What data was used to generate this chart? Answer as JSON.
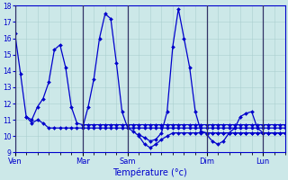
{
  "title": "",
  "xlabel": "Température (°c)",
  "ylabel": "",
  "xlim": [
    0,
    48
  ],
  "ylim": [
    9,
    18
  ],
  "yticks": [
    9,
    10,
    11,
    12,
    13,
    14,
    15,
    16,
    17,
    18
  ],
  "day_positions": [
    0,
    12,
    20,
    34,
    44
  ],
  "day_labels": [
    "Ven",
    "Mar",
    "Sam",
    "Dim",
    "Lun"
  ],
  "background_color": "#cce8e8",
  "grid_color": "#aacfcf",
  "line_color": "#0000cc",
  "separator_color": "#333366",
  "lines": [
    {
      "start": 0,
      "values": [
        16.3,
        13.8,
        11.2,
        10.8,
        11.0,
        10.8,
        10.5,
        10.5,
        10.5,
        10.5,
        10.5,
        10.5,
        10.5,
        10.5,
        10.5,
        10.5,
        10.5,
        10.5,
        10.5,
        10.5,
        10.5,
        10.5,
        10.5,
        10.5,
        10.5,
        10.5,
        10.5,
        10.5,
        10.5,
        10.5,
        10.5,
        10.5,
        10.5,
        10.5,
        10.5,
        10.5,
        10.5,
        10.5,
        10.5,
        10.5,
        10.5,
        10.5,
        10.5,
        10.5,
        10.5,
        10.5,
        10.5,
        10.5,
        10.5
      ]
    },
    {
      "start": 2,
      "values": [
        11.2,
        11.0,
        11.8,
        12.3,
        13.3,
        15.3,
        15.6,
        14.2,
        11.8,
        10.8,
        10.7,
        10.7,
        10.7,
        10.7,
        10.7,
        10.7,
        10.7,
        10.7,
        10.7,
        10.7,
        10.7,
        10.7,
        10.7,
        10.7,
        10.7,
        10.7,
        10.7,
        10.7,
        10.7,
        10.7,
        10.7,
        10.7,
        10.7,
        10.7,
        10.7,
        10.7,
        10.7,
        10.7,
        10.7,
        10.7,
        10.7,
        10.7,
        10.7,
        10.7,
        10.7,
        10.7,
        10.7
      ]
    },
    {
      "start": 12,
      "values": [
        10.5,
        11.8,
        13.5,
        16.0,
        17.5,
        17.2,
        14.5,
        11.5,
        10.5,
        10.3,
        10.0,
        9.5,
        9.3,
        9.5,
        9.8,
        10.0,
        10.2,
        10.2,
        10.2,
        10.2,
        10.2,
        10.2,
        10.2,
        10.2,
        10.2,
        10.2,
        10.2,
        10.2,
        10.2,
        10.2,
        10.2,
        10.2,
        10.2,
        10.2,
        10.2,
        10.2,
        10.2
      ]
    },
    {
      "start": 22,
      "values": [
        10.1,
        9.9,
        9.7,
        9.8,
        10.2,
        11.5,
        15.5,
        17.8,
        16.0,
        14.2,
        11.5,
        10.3,
        10.2,
        10.2,
        10.2,
        10.2,
        10.2,
        10.2,
        10.2,
        10.2,
        10.2,
        10.2,
        10.2,
        10.2,
        10.2,
        10.2,
        10.2
      ]
    },
    {
      "start": 34,
      "values": [
        10.1,
        9.7,
        9.5,
        9.7,
        10.2,
        10.5,
        11.2,
        11.4,
        11.5,
        10.5,
        10.2,
        10.2,
        10.2,
        10.2,
        10.2
      ]
    }
  ]
}
